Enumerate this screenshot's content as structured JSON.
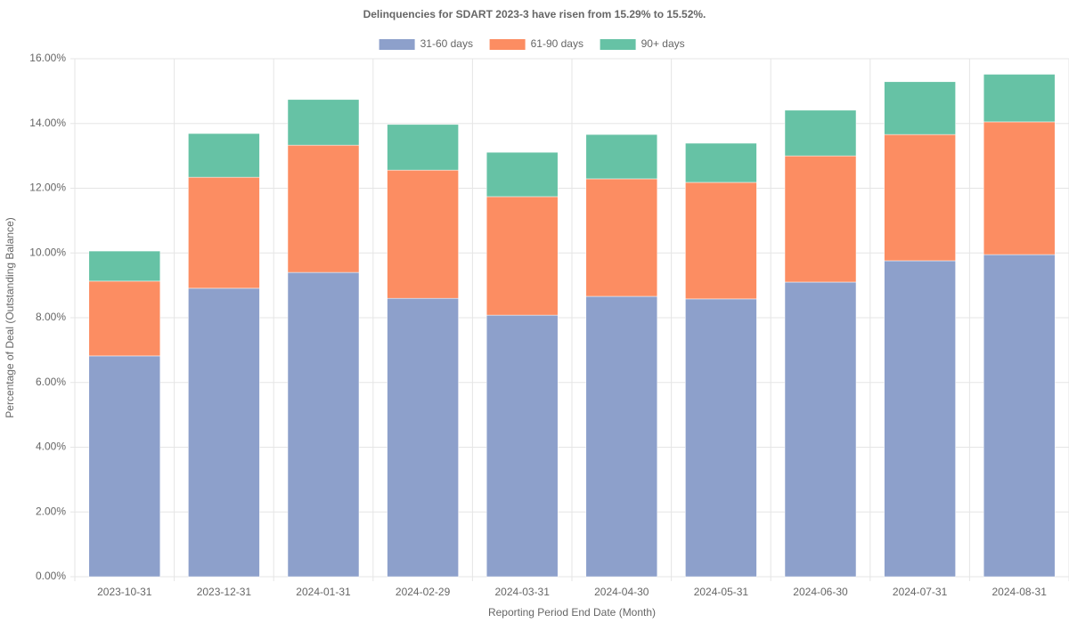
{
  "chart_data": {
    "type": "stacked-bar",
    "title": "Delinquencies for SDART 2023-3 have risen from 15.29% to 15.52%.",
    "x_label": "Reporting Period End Date (Month)",
    "y_label": "Percentage of Deal (Outstanding Balance)",
    "categories": [
      "2023-10-31",
      "2023-12-31",
      "2024-01-31",
      "2024-02-29",
      "2024-03-31",
      "2024-04-30",
      "2024-05-31",
      "2024-06-30",
      "2024-07-31",
      "2024-08-31"
    ],
    "series": [
      {
        "name": "31-60 days",
        "color": "#8da0cb",
        "values": [
          6.82,
          8.91,
          9.4,
          8.6,
          8.08,
          8.66,
          8.58,
          9.1,
          9.76,
          9.95
        ]
      },
      {
        "name": "61-90 days",
        "color": "#fc8d62",
        "values": [
          2.31,
          3.43,
          3.93,
          3.96,
          3.66,
          3.63,
          3.6,
          3.9,
          3.9,
          4.1
        ]
      },
      {
        "name": "90+ days",
        "color": "#66c2a5",
        "values": [
          0.93,
          1.35,
          1.41,
          1.41,
          1.37,
          1.37,
          1.21,
          1.41,
          1.63,
          1.47
        ]
      }
    ],
    "ylim": [
      0,
      16
    ],
    "yticks": [
      {
        "value": 0,
        "label": "0.00%"
      },
      {
        "value": 2,
        "label": "2.00%"
      },
      {
        "value": 4,
        "label": "4.00%"
      },
      {
        "value": 6,
        "label": "6.00%"
      },
      {
        "value": 8,
        "label": "8.00%"
      },
      {
        "value": 10,
        "label": "10.00%"
      },
      {
        "value": 12,
        "label": "12.00%"
      },
      {
        "value": 14,
        "label": "14.00%"
      },
      {
        "value": 16,
        "label": "16.00%"
      }
    ],
    "grid": true
  }
}
